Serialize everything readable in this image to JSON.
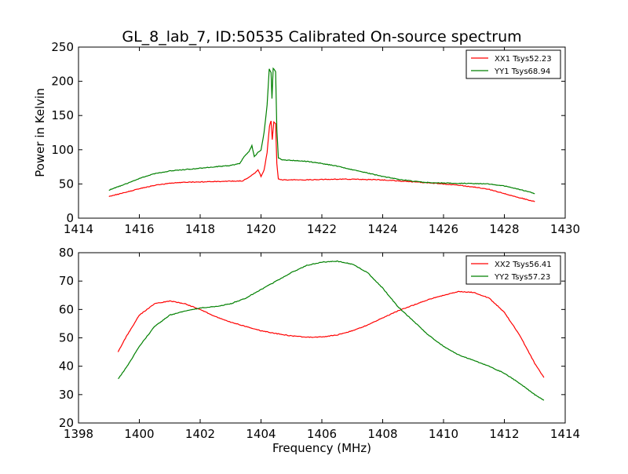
{
  "figure": {
    "title": "GL_8_lab_7, ID:50535 Calibrated On-source spectrum"
  },
  "chart_data": [
    {
      "type": "line",
      "title": "GL_8_lab_7, ID:50535 Calibrated On-source spectrum",
      "xlabel": "",
      "ylabel": "Power in Kelvin",
      "xlim": [
        1414,
        1430
      ],
      "ylim": [
        0,
        250
      ],
      "xticks": [
        1414,
        1416,
        1418,
        1420,
        1422,
        1424,
        1426,
        1428,
        1430
      ],
      "yticks": [
        0,
        50,
        100,
        150,
        200,
        250
      ],
      "grid": false,
      "legend": "top-right",
      "series": [
        {
          "name": "XX1 Tsys52.23",
          "color": "#ff0000",
          "points": [
            [
              1415.0,
              32
            ],
            [
              1415.5,
              37
            ],
            [
              1416.0,
              43
            ],
            [
              1416.5,
              48
            ],
            [
              1417.0,
              51
            ],
            [
              1417.5,
              52.5
            ],
            [
              1418.0,
              53
            ],
            [
              1418.5,
              53.5
            ],
            [
              1419.0,
              54
            ],
            [
              1419.4,
              54.5
            ],
            [
              1419.6,
              60
            ],
            [
              1419.8,
              66
            ],
            [
              1419.9,
              71
            ],
            [
              1420.0,
              61
            ],
            [
              1420.1,
              70
            ],
            [
              1420.2,
              96
            ],
            [
              1420.28,
              135
            ],
            [
              1420.33,
              142
            ],
            [
              1420.37,
              115
            ],
            [
              1420.42,
              141
            ],
            [
              1420.48,
              138
            ],
            [
              1420.52,
              80
            ],
            [
              1420.57,
              57
            ],
            [
              1420.7,
              56
            ],
            [
              1421.5,
              56
            ],
            [
              1422.0,
              56.5
            ],
            [
              1422.5,
              57
            ],
            [
              1423.0,
              57
            ],
            [
              1423.5,
              56.5
            ],
            [
              1424.0,
              56
            ],
            [
              1424.5,
              54.5
            ],
            [
              1425.0,
              53
            ],
            [
              1425.5,
              51.5
            ],
            [
              1426.0,
              50
            ],
            [
              1426.5,
              48
            ],
            [
              1427.0,
              45.5
            ],
            [
              1427.5,
              42
            ],
            [
              1428.0,
              36
            ],
            [
              1428.5,
              30
            ],
            [
              1429.0,
              24
            ]
          ]
        },
        {
          "name": "YY1 Tsys68.94",
          "color": "#008000",
          "points": [
            [
              1415.0,
              41
            ],
            [
              1415.5,
              49
            ],
            [
              1416.0,
              58
            ],
            [
              1416.5,
              65
            ],
            [
              1417.0,
              69
            ],
            [
              1417.5,
              71
            ],
            [
              1418.0,
              73
            ],
            [
              1418.5,
              75
            ],
            [
              1419.0,
              77
            ],
            [
              1419.3,
              80
            ],
            [
              1419.45,
              90
            ],
            [
              1419.6,
              97
            ],
            [
              1419.7,
              106
            ],
            [
              1419.78,
              90
            ],
            [
              1419.9,
              96
            ],
            [
              1420.0,
              99
            ],
            [
              1420.1,
              125
            ],
            [
              1420.2,
              165
            ],
            [
              1420.27,
              218
            ],
            [
              1420.33,
              213
            ],
            [
              1420.36,
              175
            ],
            [
              1420.4,
              219
            ],
            [
              1420.48,
              214
            ],
            [
              1420.52,
              130
            ],
            [
              1420.57,
              88
            ],
            [
              1420.7,
              85
            ],
            [
              1421.0,
              84.5
            ],
            [
              1421.5,
              83
            ],
            [
              1422.0,
              80
            ],
            [
              1422.5,
              76
            ],
            [
              1423.0,
              71
            ],
            [
              1423.5,
              66
            ],
            [
              1424.0,
              61
            ],
            [
              1424.5,
              57
            ],
            [
              1425.0,
              54
            ],
            [
              1425.5,
              52
            ],
            [
              1426.0,
              51.5
            ],
            [
              1426.5,
              51
            ],
            [
              1427.0,
              50.5
            ],
            [
              1427.5,
              50
            ],
            [
              1428.0,
              47
            ],
            [
              1428.5,
              42
            ],
            [
              1429.0,
              36
            ]
          ]
        }
      ]
    },
    {
      "type": "line",
      "title": "",
      "xlabel": "Frequency (MHz)",
      "ylabel": "",
      "xlim": [
        1398,
        1414
      ],
      "ylim": [
        20,
        80
      ],
      "xticks": [
        1398,
        1400,
        1402,
        1404,
        1406,
        1408,
        1410,
        1412,
        1414
      ],
      "yticks": [
        20,
        30,
        40,
        50,
        60,
        70,
        80
      ],
      "grid": false,
      "legend": "top-right",
      "series": [
        {
          "name": "XX2 Tsys56.41",
          "color": "#ff0000",
          "points": [
            [
              1399.3,
              45
            ],
            [
              1399.6,
              51
            ],
            [
              1400.0,
              58
            ],
            [
              1400.5,
              62
            ],
            [
              1401.0,
              63
            ],
            [
              1401.5,
              62
            ],
            [
              1402.0,
              60
            ],
            [
              1402.5,
              57.5
            ],
            [
              1403.0,
              55.5
            ],
            [
              1403.5,
              54
            ],
            [
              1404.0,
              52.5
            ],
            [
              1404.5,
              51.5
            ],
            [
              1405.0,
              50.7
            ],
            [
              1405.5,
              50.2
            ],
            [
              1406.0,
              50.3
            ],
            [
              1406.5,
              51
            ],
            [
              1407.0,
              52.5
            ],
            [
              1407.5,
              54.5
            ],
            [
              1408.0,
              57
            ],
            [
              1408.5,
              59.5
            ],
            [
              1409.0,
              61.5
            ],
            [
              1409.5,
              63.5
            ],
            [
              1410.0,
              65
            ],
            [
              1410.5,
              66.3
            ],
            [
              1411.0,
              66
            ],
            [
              1411.5,
              64
            ],
            [
              1412.0,
              59
            ],
            [
              1412.5,
              51
            ],
            [
              1413.0,
              41
            ],
            [
              1413.3,
              36
            ]
          ]
        },
        {
          "name": "YY2 Tsys57.23",
          "color": "#008000",
          "points": [
            [
              1399.3,
              35.5
            ],
            [
              1399.6,
              40
            ],
            [
              1400.0,
              47
            ],
            [
              1400.5,
              54
            ],
            [
              1401.0,
              58
            ],
            [
              1401.5,
              59.5
            ],
            [
              1402.0,
              60.5
            ],
            [
              1402.5,
              61
            ],
            [
              1403.0,
              62
            ],
            [
              1403.5,
              64
            ],
            [
              1404.0,
              67
            ],
            [
              1404.5,
              70
            ],
            [
              1405.0,
              73
            ],
            [
              1405.5,
              75.5
            ],
            [
              1406.0,
              76.7
            ],
            [
              1406.5,
              77
            ],
            [
              1407.0,
              76
            ],
            [
              1407.5,
              73
            ],
            [
              1408.0,
              67.5
            ],
            [
              1408.5,
              61
            ],
            [
              1409.0,
              56
            ],
            [
              1409.5,
              51
            ],
            [
              1410.0,
              47
            ],
            [
              1410.5,
              44
            ],
            [
              1411.0,
              42
            ],
            [
              1411.5,
              40
            ],
            [
              1412.0,
              37.5
            ],
            [
              1412.5,
              34
            ],
            [
              1413.0,
              30
            ],
            [
              1413.3,
              28
            ]
          ]
        }
      ]
    }
  ]
}
